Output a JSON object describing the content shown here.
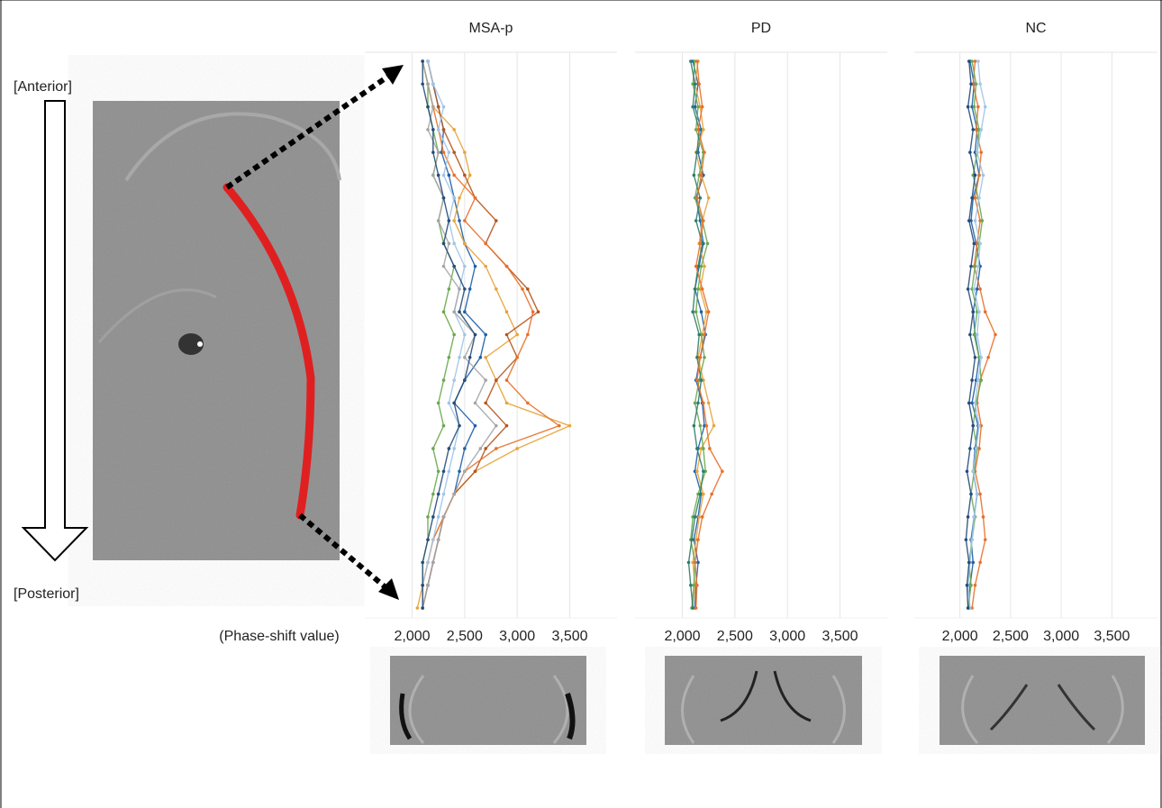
{
  "labels": {
    "anterior": "[Anterior]",
    "posterior": "[Posterior]"
  },
  "chart_data": [
    {
      "type": "line",
      "title": "MSA-p",
      "x_label": "(Phase-shift value)",
      "xlim": [
        1550,
        3950
      ],
      "xticks": [
        {
          "value": 2000,
          "label": "2,000"
        },
        {
          "value": 2500,
          "label": "2,500"
        },
        {
          "value": 3000,
          "label": "3,000"
        },
        {
          "value": 3500,
          "label": "3,500"
        }
      ],
      "grid": true,
      "series": [
        {
          "color": "#1f5fa8",
          "values": [
            2150,
            2200,
            2250,
            2300,
            2280,
            2350,
            2400,
            2450,
            2500,
            2600,
            2550,
            2500,
            2700,
            2650,
            2500,
            2400,
            2600,
            2500,
            2450,
            2400,
            2300,
            2250,
            2200,
            2150,
            2100
          ]
        },
        {
          "color": "#e8a33a",
          "values": [
            2100,
            2150,
            2200,
            2400,
            2500,
            2550,
            2450,
            2400,
            2500,
            2700,
            2800,
            2900,
            3000,
            2700,
            2800,
            2900,
            3500,
            3000,
            2600,
            2400,
            2300,
            2200,
            2150,
            2100,
            2050
          ]
        },
        {
          "color": "#b5541c",
          "values": [
            2150,
            2200,
            2250,
            2300,
            2400,
            2500,
            2600,
            2800,
            2700,
            2900,
            3100,
            3200,
            2900,
            3000,
            2800,
            2700,
            2900,
            2700,
            2600,
            2400,
            2300,
            2250,
            2200,
            2150,
            2100
          ]
        },
        {
          "color": "#e8702a",
          "values": [
            2100,
            2150,
            2200,
            2250,
            2300,
            2400,
            2600,
            2500,
            2700,
            2900,
            3050,
            3150,
            3100,
            3000,
            2900,
            3100,
            3400,
            2800,
            2500,
            2400,
            2300,
            2200,
            2150,
            2100,
            2100
          ]
        },
        {
          "color": "#6aa84f",
          "values": [
            2100,
            2150,
            2150,
            2200,
            2250,
            2200,
            2300,
            2250,
            2300,
            2400,
            2350,
            2300,
            2400,
            2350,
            2300,
            2250,
            2300,
            2200,
            2250,
            2200,
            2150,
            2150,
            2100,
            2100,
            2100
          ]
        },
        {
          "color": "#9fc5e8",
          "values": [
            2150,
            2200,
            2300,
            2250,
            2350,
            2300,
            2400,
            2350,
            2400,
            2500,
            2450,
            2400,
            2500,
            2450,
            2400,
            2350,
            2450,
            2400,
            2350,
            2300,
            2250,
            2200,
            2150,
            2100,
            2100
          ]
        },
        {
          "color": "#a5a5a5",
          "values": [
            2100,
            2150,
            2200,
            2150,
            2250,
            2200,
            2300,
            2250,
            2350,
            2300,
            2450,
            2400,
            2600,
            2500,
            2700,
            2600,
            2800,
            2650,
            2500,
            2400,
            2300,
            2250,
            2200,
            2150,
            2100
          ]
        },
        {
          "color": "#254d7a",
          "values": [
            2100,
            2100,
            2150,
            2200,
            2200,
            2250,
            2300,
            2350,
            2300,
            2400,
            2500,
            2450,
            2600,
            2550,
            2500,
            2400,
            2450,
            2350,
            2300,
            2250,
            2200,
            2150,
            2100,
            2100,
            2100
          ]
        }
      ]
    },
    {
      "type": "line",
      "title": "PD",
      "xlim": [
        1550,
        3950
      ],
      "xticks": [
        {
          "value": 2000,
          "label": "2,000"
        },
        {
          "value": 2500,
          "label": "2,500"
        },
        {
          "value": 3000,
          "label": "3,000"
        },
        {
          "value": 3500,
          "label": "3,500"
        }
      ],
      "grid": true,
      "series": [
        {
          "color": "#1f5fa8",
          "values": [
            2100,
            2150,
            2120,
            2180,
            2150,
            2200,
            2130,
            2170,
            2200,
            2160,
            2120,
            2180,
            2220,
            2170,
            2130,
            2190,
            2210,
            2150,
            2120,
            2180,
            2150,
            2110,
            2150,
            2130,
            2120
          ]
        },
        {
          "color": "#e8a33a",
          "values": [
            2150,
            2120,
            2170,
            2200,
            2130,
            2180,
            2250,
            2190,
            2160,
            2210,
            2170,
            2230,
            2190,
            2150,
            2200,
            2250,
            2300,
            2180,
            2140,
            2200,
            2160,
            2130,
            2100,
            2120,
            2100
          ]
        },
        {
          "color": "#6aa84f",
          "values": [
            2120,
            2100,
            2150,
            2130,
            2200,
            2160,
            2120,
            2190,
            2240,
            2180,
            2150,
            2130,
            2180,
            2210,
            2160,
            2120,
            2170,
            2200,
            2220,
            2150,
            2100,
            2080,
            2120,
            2110,
            2090
          ]
        },
        {
          "color": "#2e7d6b",
          "values": [
            2080,
            2120,
            2100,
            2160,
            2140,
            2110,
            2170,
            2130,
            2190,
            2150,
            2120,
            2100,
            2160,
            2140,
            2180,
            2150,
            2110,
            2140,
            2200,
            2170,
            2120,
            2090,
            2060,
            2080,
            2100
          ]
        },
        {
          "color": "#e8702a",
          "values": [
            2140,
            2160,
            2190,
            2150,
            2210,
            2180,
            2140,
            2200,
            2170,
            2130,
            2190,
            2250,
            2210,
            2170,
            2140,
            2200,
            2230,
            2260,
            2380,
            2280,
            2190,
            2150,
            2120,
            2140,
            2130
          ]
        }
      ]
    },
    {
      "type": "line",
      "title": "NC",
      "xlim": [
        1550,
        3950
      ],
      "xticks": [
        {
          "value": 2000,
          "label": "2,000"
        },
        {
          "value": 2500,
          "label": "2,500"
        },
        {
          "value": 3000,
          "label": "3,000"
        },
        {
          "value": 3500,
          "label": "3,500"
        }
      ],
      "grid": true,
      "series": [
        {
          "color": "#1f5fa8",
          "values": [
            2100,
            2140,
            2120,
            2170,
            2150,
            2190,
            2130,
            2110,
            2160,
            2200,
            2170,
            2130,
            2150,
            2190,
            2160,
            2120,
            2180,
            2150,
            2130,
            2170,
            2140,
            2110,
            2130,
            2100,
            2090
          ]
        },
        {
          "color": "#e8702a",
          "values": [
            2150,
            2130,
            2180,
            2160,
            2210,
            2190,
            2150,
            2200,
            2170,
            2140,
            2200,
            2250,
            2350,
            2280,
            2200,
            2170,
            2210,
            2190,
            2150,
            2200,
            2230,
            2250,
            2200,
            2150,
            2120
          ]
        },
        {
          "color": "#6aa84f",
          "values": [
            2120,
            2160,
            2140,
            2190,
            2170,
            2130,
            2180,
            2220,
            2190,
            2150,
            2120,
            2170,
            2140,
            2190,
            2210,
            2160,
            2130,
            2170,
            2140,
            2110,
            2150,
            2120,
            2090,
            2110,
            2080
          ]
        },
        {
          "color": "#9fc5e8",
          "values": [
            2180,
            2200,
            2250,
            2210,
            2170,
            2230,
            2190,
            2150,
            2200,
            2180,
            2140,
            2190,
            2170,
            2210,
            2180,
            2150,
            2190,
            2160,
            2130,
            2170,
            2140,
            2120,
            2100,
            2080,
            2100
          ]
        },
        {
          "color": "#254d7a",
          "values": [
            2090,
            2110,
            2080,
            2130,
            2100,
            2150,
            2120,
            2090,
            2140,
            2110,
            2080,
            2130,
            2100,
            2150,
            2120,
            2090,
            2130,
            2100,
            2070,
            2110,
            2080,
            2060,
            2090,
            2070,
            2080
          ]
        }
      ]
    }
  ]
}
